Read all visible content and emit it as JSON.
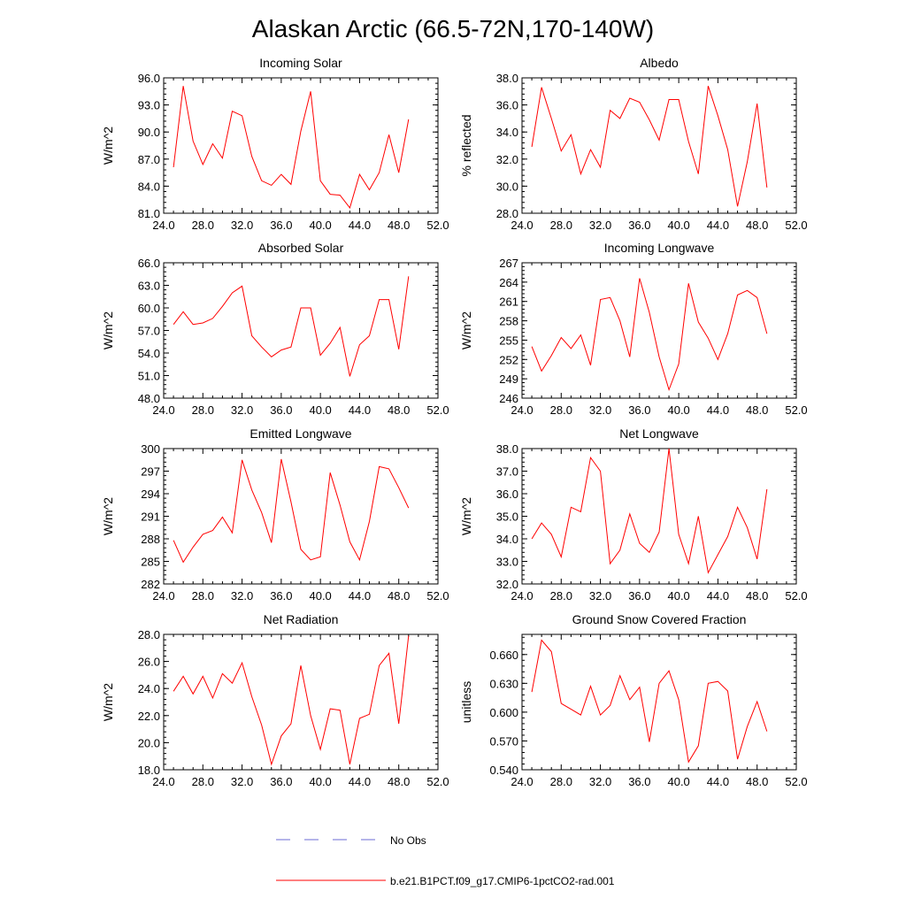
{
  "figure": {
    "title": "Alaskan Arctic (66.5-72N,170-140W)",
    "legend": [
      {
        "label": "No Obs",
        "color": "#6b6bd6",
        "dash": true
      },
      {
        "label": "b.e21.B1PCT.f09_g17.CMIP6-1pctCO2-rad.001",
        "color": "#ff0000",
        "dash": false
      }
    ]
  },
  "chart_data": [
    {
      "type": "line",
      "title": "Incoming Solar",
      "ylabel": "W/m^2",
      "xlim": [
        24,
        52
      ],
      "ylim": [
        81,
        96
      ],
      "x_ticks": [
        "24.0",
        "28.0",
        "32.0",
        "36.0",
        "40.0",
        "44.0",
        "48.0",
        "52.0"
      ],
      "y_ticks": [
        "81.0",
        "84.0",
        "87.0",
        "90.0",
        "93.0",
        "96.0"
      ],
      "y_tick_values": [
        81,
        84,
        87,
        90,
        93,
        96
      ],
      "x": [
        25,
        26,
        27,
        28,
        29,
        30,
        31,
        32,
        33,
        34,
        35,
        36,
        37,
        38,
        39,
        40,
        41,
        42,
        43,
        44,
        45,
        46,
        47,
        48,
        49
      ],
      "series": [
        {
          "name": "b.e21.B1PCT.f09_g17.CMIP6-1pctCO2-rad.001",
          "color": "#ff0000",
          "values": [
            86.1,
            95.1,
            89.0,
            86.4,
            88.7,
            87.1,
            92.3,
            91.8,
            87.3,
            84.6,
            84.1,
            85.3,
            84.2,
            90.1,
            94.5,
            84.6,
            83.1,
            83.0,
            81.6,
            85.3,
            83.6,
            85.5,
            89.7,
            85.5,
            91.4
          ]
        }
      ]
    },
    {
      "type": "line",
      "title": "Albedo",
      "ylabel": "% reflected",
      "xlim": [
        24,
        52
      ],
      "ylim": [
        28,
        38
      ],
      "x_ticks": [
        "24.0",
        "28.0",
        "32.0",
        "36.0",
        "40.0",
        "44.0",
        "48.0",
        "52.0"
      ],
      "y_ticks": [
        "28.0",
        "30.0",
        "32.0",
        "34.0",
        "36.0",
        "38.0"
      ],
      "y_tick_values": [
        28,
        30,
        32,
        34,
        36,
        38
      ],
      "x": [
        25,
        26,
        27,
        28,
        29,
        30,
        31,
        32,
        33,
        34,
        35,
        36,
        37,
        38,
        39,
        40,
        41,
        42,
        43,
        44,
        45,
        46,
        47,
        48,
        49
      ],
      "series": [
        {
          "name": "b.e21.B1PCT.f09_g17.CMIP6-1pctCO2-rad.001",
          "color": "#ff0000",
          "values": [
            32.9,
            37.3,
            35.0,
            32.6,
            33.8,
            30.9,
            32.7,
            31.4,
            35.6,
            35.0,
            36.5,
            36.2,
            34.9,
            33.4,
            36.4,
            36.4,
            33.3,
            30.9,
            37.4,
            35.2,
            32.7,
            28.5,
            31.8,
            36.1,
            29.9
          ]
        }
      ]
    },
    {
      "type": "line",
      "title": "Absorbed Solar",
      "ylabel": "W/m^2",
      "xlim": [
        24,
        52
      ],
      "ylim": [
        48,
        66
      ],
      "x_ticks": [
        "24.0",
        "28.0",
        "32.0",
        "36.0",
        "40.0",
        "44.0",
        "48.0",
        "52.0"
      ],
      "y_ticks": [
        "48.0",
        "51.0",
        "54.0",
        "57.0",
        "60.0",
        "63.0",
        "66.0"
      ],
      "y_tick_values": [
        48,
        51,
        54,
        57,
        60,
        63,
        66
      ],
      "x": [
        25,
        26,
        27,
        28,
        29,
        30,
        31,
        32,
        33,
        34,
        35,
        36,
        37,
        38,
        39,
        40,
        41,
        42,
        43,
        44,
        45,
        46,
        47,
        48,
        49
      ],
      "series": [
        {
          "name": "b.e21.B1PCT.f09_g17.CMIP6-1pctCO2-rad.001",
          "color": "#ff0000",
          "values": [
            57.8,
            59.5,
            57.8,
            58.0,
            58.6,
            60.2,
            62.0,
            62.9,
            56.3,
            54.8,
            53.5,
            54.4,
            54.8,
            60.0,
            60.0,
            53.7,
            55.3,
            57.4,
            50.9,
            55.1,
            56.3,
            61.1,
            61.1,
            54.5,
            64.2
          ]
        }
      ]
    },
    {
      "type": "line",
      "title": "Incoming Longwave",
      "ylabel": "W/m^2",
      "xlim": [
        24,
        52
      ],
      "ylim": [
        246,
        267
      ],
      "x_ticks": [
        "24.0",
        "28.0",
        "32.0",
        "36.0",
        "40.0",
        "44.0",
        "48.0",
        "52.0"
      ],
      "y_ticks": [
        "246",
        "249",
        "252",
        "255",
        "258",
        "261",
        "264",
        "267"
      ],
      "y_tick_values": [
        246,
        249,
        252,
        255,
        258,
        261,
        264,
        267
      ],
      "x": [
        25,
        26,
        27,
        28,
        29,
        30,
        31,
        32,
        33,
        34,
        35,
        36,
        37,
        38,
        39,
        40,
        41,
        42,
        43,
        44,
        45,
        46,
        47,
        48,
        49
      ],
      "series": [
        {
          "name": "b.e21.B1PCT.f09_g17.CMIP6-1pctCO2-rad.001",
          "color": "#ff0000",
          "values": [
            254.0,
            250.2,
            252.6,
            255.4,
            253.7,
            255.8,
            251.1,
            261.3,
            261.6,
            258.0,
            252.4,
            264.6,
            259.3,
            252.4,
            247.3,
            251.3,
            263.8,
            257.8,
            255.3,
            252.0,
            256.0,
            262.0,
            262.7,
            261.6,
            256.0
          ]
        }
      ]
    },
    {
      "type": "line",
      "title": "Emitted Longwave",
      "ylabel": "W/m^2",
      "xlim": [
        24,
        52
      ],
      "ylim": [
        282,
        300
      ],
      "x_ticks": [
        "24.0",
        "28.0",
        "32.0",
        "36.0",
        "40.0",
        "44.0",
        "48.0",
        "52.0"
      ],
      "y_ticks": [
        "282",
        "285",
        "288",
        "291",
        "294",
        "297",
        "300"
      ],
      "y_tick_values": [
        282,
        285,
        288,
        291,
        294,
        297,
        300
      ],
      "x": [
        25,
        26,
        27,
        28,
        29,
        30,
        31,
        32,
        33,
        34,
        35,
        36,
        37,
        38,
        39,
        40,
        41,
        42,
        43,
        44,
        45,
        46,
        47,
        48,
        49
      ],
      "series": [
        {
          "name": "b.e21.B1PCT.f09_g17.CMIP6-1pctCO2-rad.001",
          "color": "#ff0000",
          "values": [
            287.8,
            284.9,
            286.9,
            288.6,
            289.1,
            290.9,
            288.8,
            298.5,
            294.5,
            291.5,
            287.5,
            298.6,
            292.9,
            286.6,
            285.2,
            285.6,
            296.8,
            292.5,
            287.6,
            285.2,
            290.3,
            297.6,
            297.3,
            294.8,
            292.1
          ]
        }
      ]
    },
    {
      "type": "line",
      "title": "Net Longwave",
      "ylabel": "W/m^2",
      "xlim": [
        24,
        52
      ],
      "ylim": [
        32,
        38
      ],
      "x_ticks": [
        "24.0",
        "28.0",
        "32.0",
        "36.0",
        "40.0",
        "44.0",
        "48.0",
        "52.0"
      ],
      "y_ticks": [
        "32.0",
        "33.0",
        "34.0",
        "35.0",
        "36.0",
        "37.0",
        "38.0"
      ],
      "y_tick_values": [
        32,
        33,
        34,
        35,
        36,
        37,
        38
      ],
      "x": [
        25,
        26,
        27,
        28,
        29,
        30,
        31,
        32,
        33,
        34,
        35,
        36,
        37,
        38,
        39,
        40,
        41,
        42,
        43,
        44,
        45,
        46,
        47,
        48,
        49
      ],
      "series": [
        {
          "name": "b.e21.B1PCT.f09_g17.CMIP6-1pctCO2-rad.001",
          "color": "#ff0000",
          "values": [
            34.0,
            34.7,
            34.2,
            33.2,
            35.4,
            35.2,
            37.6,
            37.0,
            32.9,
            33.5,
            35.1,
            33.8,
            33.4,
            34.3,
            38.0,
            34.2,
            32.9,
            35.0,
            32.5,
            33.3,
            34.1,
            35.4,
            34.5,
            33.1,
            36.2
          ]
        }
      ]
    },
    {
      "type": "line",
      "title": "Net Radiation",
      "ylabel": "W/m^2",
      "xlim": [
        24,
        52
      ],
      "ylim": [
        18,
        28
      ],
      "x_ticks": [
        "24.0",
        "28.0",
        "32.0",
        "36.0",
        "40.0",
        "44.0",
        "48.0",
        "52.0"
      ],
      "y_ticks": [
        "18.0",
        "20.0",
        "22.0",
        "24.0",
        "26.0",
        "28.0"
      ],
      "y_tick_values": [
        18,
        20,
        22,
        24,
        26,
        28
      ],
      "x": [
        25,
        26,
        27,
        28,
        29,
        30,
        31,
        32,
        33,
        34,
        35,
        36,
        37,
        38,
        39,
        40,
        41,
        42,
        43,
        44,
        45,
        46,
        47,
        48,
        49
      ],
      "series": [
        {
          "name": "b.e21.B1PCT.f09_g17.CMIP6-1pctCO2-rad.001",
          "color": "#ff0000",
          "values": [
            23.8,
            24.9,
            23.6,
            24.9,
            23.3,
            25.1,
            24.4,
            25.9,
            23.4,
            21.3,
            18.4,
            20.5,
            21.4,
            25.7,
            22.0,
            19.5,
            22.5,
            22.4,
            18.4,
            21.8,
            22.1,
            25.7,
            26.6,
            21.4,
            27.9
          ]
        }
      ]
    },
    {
      "type": "line",
      "title": "Ground Snow Covered Fraction",
      "ylabel": "unitless",
      "xlim": [
        24,
        52
      ],
      "ylim": [
        0.54,
        0.681
      ],
      "x_ticks": [
        "24.0",
        "28.0",
        "32.0",
        "36.0",
        "40.0",
        "44.0",
        "48.0",
        "52.0"
      ],
      "y_ticks": [
        "0.540",
        "0.570",
        "0.600",
        "0.630",
        "0.660"
      ],
      "y_tick_values": [
        0.54,
        0.57,
        0.6,
        0.63,
        0.66
      ],
      "x": [
        25,
        26,
        27,
        28,
        29,
        30,
        31,
        32,
        33,
        34,
        35,
        36,
        37,
        38,
        39,
        40,
        41,
        42,
        43,
        44,
        45,
        46,
        47,
        48,
        49
      ],
      "series": [
        {
          "name": "b.e21.B1PCT.f09_g17.CMIP6-1pctCO2-rad.001",
          "color": "#ff0000",
          "values": [
            0.621,
            0.675,
            0.663,
            0.609,
            0.603,
            0.597,
            0.627,
            0.597,
            0.607,
            0.638,
            0.613,
            0.626,
            0.569,
            0.63,
            0.643,
            0.613,
            0.548,
            0.565,
            0.63,
            0.632,
            0.622,
            0.551,
            0.585,
            0.611,
            0.58
          ]
        }
      ]
    }
  ]
}
